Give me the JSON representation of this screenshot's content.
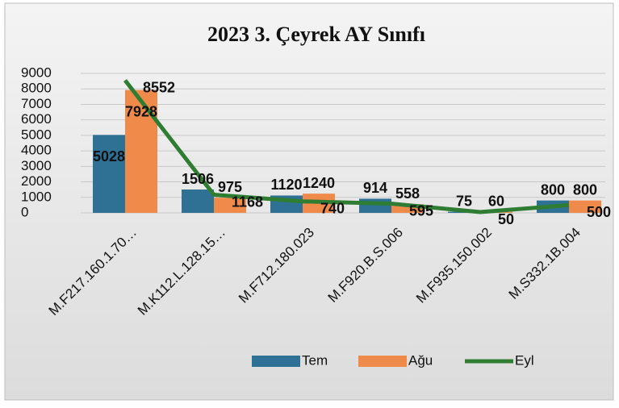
{
  "chart_data": {
    "type": "bar-line",
    "title": "2023 3. Çeyrek AY Sınıfı",
    "categories": [
      "M.F217.160.1.70…",
      "M.K112.L.128.15…",
      "M.F712.180.023",
      "M.F920.B.S.006",
      "M.F935.150.002",
      "M.S332.1B.004"
    ],
    "series": [
      {
        "name": "Tem",
        "color": "#2f7194",
        "kind": "bar",
        "values": [
          5028,
          1506,
          1120,
          914,
          75,
          800
        ]
      },
      {
        "name": "Ağu",
        "color": "#f08a4b",
        "kind": "bar",
        "values": [
          7928,
          975,
          1240,
          558,
          60,
          800
        ]
      },
      {
        "name": "Eyl",
        "color": "#2e7d32",
        "kind": "line",
        "values": [
          8552,
          1168,
          740,
          595,
          50,
          500
        ]
      }
    ],
    "ylim": [
      0,
      9000
    ],
    "yticks": [
      0,
      1000,
      2000,
      3000,
      4000,
      5000,
      6000,
      7000,
      8000,
      9000
    ],
    "grid": true,
    "legend": "bottom"
  }
}
